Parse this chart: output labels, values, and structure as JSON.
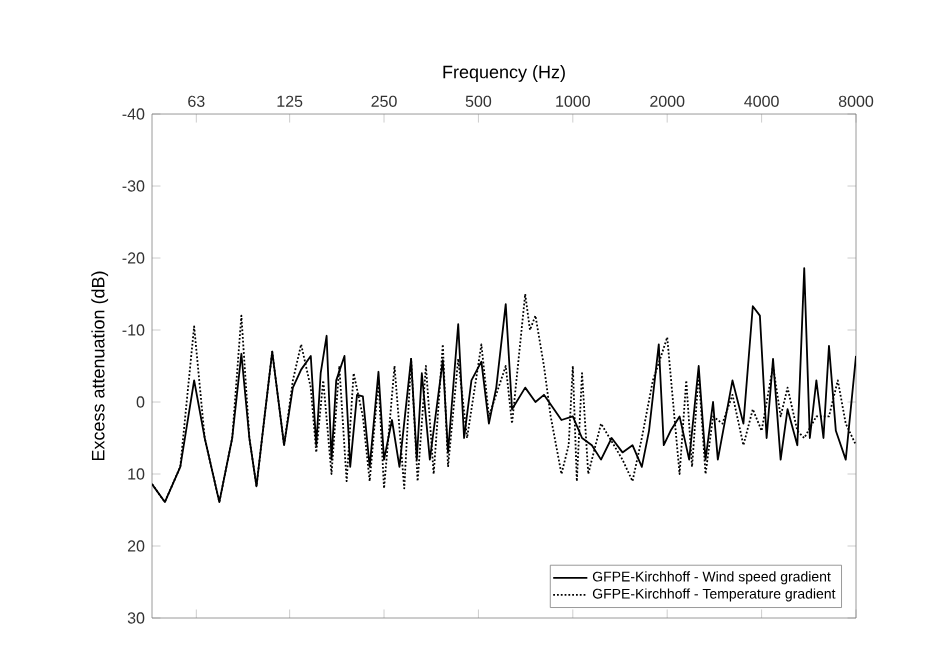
{
  "chart_data": {
    "type": "line",
    "xlabel": "Frequency (Hz)",
    "ylabel": "Excess attenuation (dB)",
    "log": "x",
    "xlim": [
      45.5,
      8000
    ],
    "xticks": [
      63,
      125,
      250,
      500,
      1000,
      2000,
      4000,
      8000
    ],
    "ylim": [
      30,
      -40
    ],
    "yticks": [
      -40,
      -30,
      -20,
      -10,
      0,
      10,
      20,
      30
    ],
    "legend": "bottom right",
    "grid": false,
    "series": [
      {
        "name": "GFPE-Kirchhoff - Wind speed gradient",
        "color": "#000000",
        "line_style": "solid",
        "x": [
          45.5,
          50,
          56,
          62,
          67,
          74.6,
          82,
          87.7,
          93,
          98,
          104,
          110,
          120,
          128,
          136,
          146,
          152,
          157,
          164,
          170,
          176,
          187,
          195,
          205,
          214,
          225,
          240,
          250,
          265,
          280,
          305,
          318,
          330,
          350,
          385,
          400,
          431,
          450,
          475,
          511,
          540,
          570,
          611,
          640,
          705,
          760,
          809,
          920,
          1000,
          1070,
          1150,
          1230,
          1330,
          1440,
          1550,
          1660,
          1750,
          1880,
          1950,
          2050,
          2190,
          2350,
          2520,
          2650,
          2800,
          2900,
          3230,
          3500,
          3750,
          3950,
          4150,
          4350,
          4600,
          4840,
          5200,
          5470,
          5700,
          5980,
          6300,
          6560,
          6900,
          7420,
          8000
        ],
        "values": [
          11.4,
          13.9,
          9,
          -3,
          5,
          13.9,
          5,
          -6.7,
          5,
          11.7,
          2,
          -7,
          6,
          -2,
          -4.5,
          -6.4,
          6,
          -4,
          -9.2,
          8,
          -3,
          -6.4,
          9,
          -1,
          -0.8,
          9,
          -4.2,
          8,
          2.5,
          9,
          -6,
          8,
          -4,
          8,
          -5.8,
          7,
          -10.8,
          5,
          -3,
          -5.6,
          3,
          -2,
          -13.6,
          1,
          -2,
          0,
          -1,
          2.5,
          2,
          5,
          6,
          8,
          5,
          7,
          6,
          9,
          4,
          -8,
          6,
          4,
          2,
          8,
          -5,
          8,
          0,
          8,
          -3,
          3,
          -13.3,
          -12,
          5,
          -6,
          8,
          1,
          6,
          -18.6,
          5,
          -3,
          5,
          -7.8,
          4,
          8,
          -6.4
        ]
      },
      {
        "name": "GFPE-Kirchhoff - Temperature gradient",
        "color": "#000000",
        "line_style": "dotted",
        "x": [
          45.5,
          50,
          56,
          62,
          67,
          74.6,
          82,
          87.7,
          93,
          98,
          104,
          110,
          120,
          128,
          136,
          146,
          152,
          160,
          170,
          180,
          190,
          200,
          214,
          225,
          240,
          250,
          270,
          290,
          305,
          320,
          340,
          360,
          385,
          400,
          431,
          460,
          511,
          540,
          611,
          640,
          705,
          730,
          760,
          809,
          850,
          920,
          970,
          1000,
          1030,
          1070,
          1120,
          1230,
          1440,
          1550,
          1660,
          1800,
          1900,
          2000,
          2190,
          2300,
          2400,
          2520,
          2650,
          2800,
          3000,
          3230,
          3500,
          3750,
          4000,
          4350,
          4600,
          4840,
          5200,
          5470,
          5980,
          6560,
          7000,
          7420,
          8000
        ],
        "values": [
          11.4,
          13.9,
          9,
          -10.5,
          5,
          13.9,
          5,
          -12,
          5,
          11.7,
          2,
          -7,
          6,
          -3,
          -8,
          -2,
          7,
          -3,
          10,
          -5,
          11,
          -4,
          2,
          11,
          -3,
          12,
          -5,
          12,
          -6,
          11,
          -5,
          10,
          -8,
          9,
          -6,
          5,
          -8,
          2,
          -5,
          3,
          -15,
          -10,
          -12,
          -5,
          2,
          10,
          6,
          -5,
          11,
          -4,
          10,
          3,
          8,
          11,
          5,
          -3,
          -6,
          -9,
          10,
          -3,
          9,
          -4,
          10,
          2,
          3,
          -1,
          6,
          1,
          4,
          -5,
          2,
          -2,
          4,
          5,
          2,
          2,
          -3,
          3,
          6
        ]
      }
    ]
  }
}
